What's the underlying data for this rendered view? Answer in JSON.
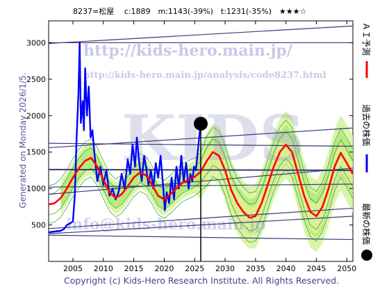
{
  "chart_data": {
    "type": "line",
    "title": "8237=松屋　 c:1889　m:1143(-39%)　t:1231(-35%)　★★★☆",
    "side_label": "Generated on Monday 2026/1/5.",
    "copyright": "Copyright (c) Kids-Hero Research Institute. All Rights Reserved.",
    "watermarks": [
      "http://kids-hero.main.jp/",
      "http://kids-hero.main.jp/analysis/code8237.html",
      "KIDS",
      "info@kids-hero.main.jp"
    ],
    "xlim": [
      2001,
      2051
    ],
    "ylim": [
      0,
      3300
    ],
    "x_ticks": [
      2005,
      2010,
      2015,
      2020,
      2025,
      2030,
      2035,
      2040,
      2045,
      2050
    ],
    "y_ticks": [
      0,
      500,
      1000,
      1500,
      2000,
      2500,
      3000
    ],
    "legend": [
      {
        "label": "ＡＩ予測",
        "color": "#ff0000"
      },
      {
        "label": "過去の株価",
        "color": "#0000ff"
      },
      {
        "label": "最新の株価",
        "color": "#000000"
      }
    ],
    "current": {
      "x": 2026.0,
      "y": 1889
    },
    "series": [
      {
        "name": "過去の株価",
        "color": "#0000ff",
        "x": [
          2001.0,
          2002.0,
          2003.0,
          2003.6,
          2004.0,
          2004.5,
          2005.0,
          2005.3,
          2005.6,
          2005.9,
          2006.1,
          2006.3,
          2006.6,
          2006.8,
          2007.0,
          2007.3,
          2007.6,
          2007.9,
          2008.2,
          2008.5,
          2009.0,
          2009.5,
          2010.0,
          2010.5,
          2011.0,
          2011.5,
          2012.0,
          2012.5,
          2013.0,
          2013.5,
          2014.0,
          2014.4,
          2014.8,
          2015.2,
          2015.5,
          2015.9,
          2016.3,
          2016.7,
          2017.0,
          2017.4,
          2017.8,
          2018.2,
          2018.6,
          2019.0,
          2019.4,
          2019.8,
          2020.1,
          2020.4,
          2020.8,
          2021.2,
          2021.6,
          2022.0,
          2022.4,
          2022.8,
          2023.2,
          2023.6,
          2024.0,
          2024.3,
          2024.6,
          2024.9,
          2025.2,
          2025.5,
          2025.8,
          2026.0
        ],
        "y": [
          400,
          410,
          420,
          450,
          500,
          520,
          550,
          900,
          1700,
          2300,
          3000,
          1900,
          2200,
          1800,
          2650,
          2000,
          2400,
          1700,
          1800,
          1500,
          1100,
          1300,
          1050,
          1250,
          900,
          1000,
          850,
          950,
          1200,
          1000,
          1400,
          1200,
          1600,
          1300,
          1700,
          1350,
          1100,
          1450,
          1300,
          1050,
          1250,
          1000,
          1350,
          1150,
          1450,
          1050,
          700,
          950,
          800,
          1150,
          850,
          1300,
          1000,
          1450,
          1100,
          1350,
          1000,
          1200,
          1100,
          1300,
          1250,
          1500,
          1750,
          1889
        ]
      },
      {
        "name": "ＡＩ予測",
        "color": "#ff0000",
        "x": [
          2001,
          2002,
          2003,
          2004,
          2005,
          2006,
          2007,
          2008,
          2009,
          2010,
          2011,
          2012,
          2013,
          2014,
          2015,
          2016,
          2017,
          2018,
          2019,
          2020,
          2021,
          2022,
          2023,
          2024,
          2025,
          2026,
          2027,
          2028,
          2029,
          2030,
          2031,
          2032,
          2033,
          2034,
          2035,
          2036,
          2037,
          2038,
          2039,
          2040,
          2041,
          2042,
          2043,
          2044,
          2045,
          2046,
          2047,
          2048,
          2049,
          2050,
          2051
        ],
        "y": [
          780,
          800,
          870,
          1000,
          1150,
          1280,
          1380,
          1420,
          1300,
          1120,
          950,
          870,
          920,
          1030,
          1150,
          1220,
          1180,
          1050,
          900,
          850,
          920,
          1000,
          1080,
          1120,
          1160,
          1230,
          1380,
          1500,
          1450,
          1250,
          980,
          800,
          680,
          600,
          620,
          800,
          1050,
          1300,
          1500,
          1600,
          1500,
          1200,
          900,
          680,
          620,
          750,
          1000,
          1300,
          1490,
          1350,
          1200
        ]
      }
    ],
    "trend_lines": [
      {
        "x": [
          2001,
          2051
        ],
        "y": [
          3000,
          3000
        ]
      },
      {
        "x": [
          2001,
          2051
        ],
        "y": [
          2990,
          3230
        ]
      },
      {
        "x": [
          2001,
          2051
        ],
        "y": [
          1560,
          1830
        ]
      },
      {
        "x": [
          2001,
          2051
        ],
        "y": [
          1620,
          1580
        ]
      },
      {
        "x": [
          2001,
          2051
        ],
        "y": [
          1260,
          1250
        ]
      },
      {
        "x": [
          2001,
          2051
        ],
        "y": [
          1020,
          1060
        ]
      },
      {
        "x": [
          2001,
          2051
        ],
        "y": [
          920,
          1280
        ]
      },
      {
        "x": [
          2001,
          2051
        ],
        "y": [
          450,
          730
        ]
      },
      {
        "x": [
          2001,
          2051
        ],
        "y": [
          380,
          620
        ]
      },
      {
        "x": [
          2001,
          2051
        ],
        "y": [
          360,
          300
        ]
      }
    ]
  }
}
